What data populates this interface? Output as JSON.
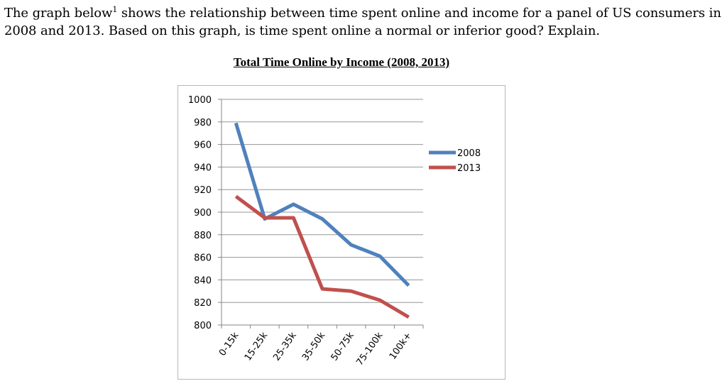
{
  "question": {
    "text_before_sup": "The graph below",
    "sup": "1",
    "text_after_sup": " shows the relationship between time spent online and income for a panel of US consumers in 2008 and 2013. Based on this graph, is time spent online a normal or inferior good? Explain."
  },
  "chart_data": {
    "type": "line",
    "title": "Total Time Online by Income (2008, 2013)",
    "categories": [
      "0-15k",
      "15-25k",
      "25-35k",
      "35-50k",
      "50-75k",
      "75-100k",
      "100k+"
    ],
    "series": [
      {
        "name": "2008",
        "values": [
          979,
          894,
          907,
          894,
          871,
          861,
          835
        ],
        "color": "#4f81bd"
      },
      {
        "name": "2013",
        "values": [
          914,
          895,
          895,
          832,
          830,
          822,
          807
        ],
        "color": "#c0504d"
      }
    ],
    "ylim": [
      800,
      1000
    ],
    "yticks": [
      1000,
      980,
      960,
      940,
      920,
      900,
      880,
      860,
      840,
      820,
      800
    ],
    "xlabel": "",
    "ylabel": "",
    "grid": true,
    "legend": "right",
    "gridline_color": "#969696"
  }
}
